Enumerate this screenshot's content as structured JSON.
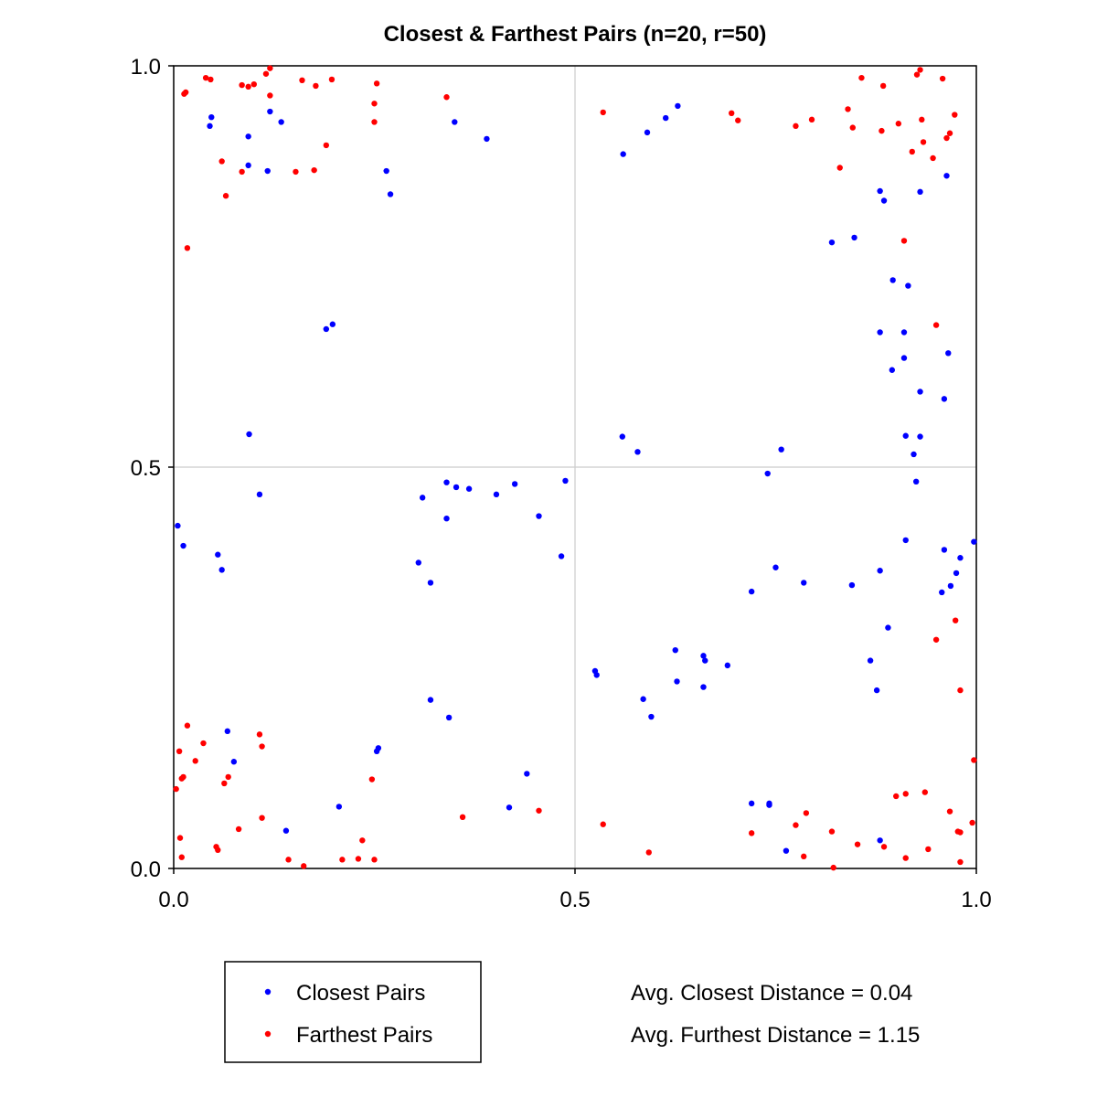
{
  "chart_data": {
    "type": "scatter",
    "title": "Closest & Farthest Pairs (n=20, r=50)",
    "xlabel": "",
    "ylabel": "",
    "xlim": [
      0.0,
      1.0
    ],
    "ylim": [
      0.0,
      1.0
    ],
    "xticks": [
      "0.0",
      "0.5",
      "1.0"
    ],
    "yticks": [
      "0.0",
      "0.5",
      "1.0"
    ],
    "grid": true,
    "legend_position": "bottom-left, outside plot",
    "series": [
      {
        "name": "Closest Pairs",
        "color": "#0000ff",
        "points": [
          [
            0.047,
            0.936
          ],
          [
            0.045,
            0.925
          ],
          [
            0.093,
            0.876
          ],
          [
            0.093,
            0.912
          ],
          [
            0.12,
            0.943
          ],
          [
            0.134,
            0.93
          ],
          [
            0.117,
            0.869
          ],
          [
            0.35,
            0.93
          ],
          [
            0.39,
            0.909
          ],
          [
            0.265,
            0.869
          ],
          [
            0.27,
            0.84
          ],
          [
            0.19,
            0.672
          ],
          [
            0.198,
            0.678
          ],
          [
            0.094,
            0.541
          ],
          [
            0.107,
            0.466
          ],
          [
            0.005,
            0.427
          ],
          [
            0.012,
            0.402
          ],
          [
            0.055,
            0.391
          ],
          [
            0.06,
            0.372
          ],
          [
            0.067,
            0.171
          ],
          [
            0.075,
            0.133
          ],
          [
            0.14,
            0.047
          ],
          [
            0.206,
            0.077
          ],
          [
            0.253,
            0.146
          ],
          [
            0.255,
            0.15
          ],
          [
            0.31,
            0.462
          ],
          [
            0.32,
            0.356
          ],
          [
            0.305,
            0.381
          ],
          [
            0.34,
            0.481
          ],
          [
            0.352,
            0.475
          ],
          [
            0.368,
            0.473
          ],
          [
            0.34,
            0.436
          ],
          [
            0.402,
            0.466
          ],
          [
            0.425,
            0.479
          ],
          [
            0.455,
            0.439
          ],
          [
            0.483,
            0.389
          ],
          [
            0.488,
            0.483
          ],
          [
            0.32,
            0.21
          ],
          [
            0.343,
            0.188
          ],
          [
            0.418,
            0.076
          ],
          [
            0.44,
            0.118
          ],
          [
            0.56,
            0.89
          ],
          [
            0.59,
            0.917
          ],
          [
            0.613,
            0.935
          ],
          [
            0.628,
            0.95
          ],
          [
            0.559,
            0.538
          ],
          [
            0.578,
            0.519
          ],
          [
            0.525,
            0.246
          ],
          [
            0.527,
            0.241
          ],
          [
            0.585,
            0.211
          ],
          [
            0.595,
            0.189
          ],
          [
            0.625,
            0.272
          ],
          [
            0.627,
            0.233
          ],
          [
            0.66,
            0.265
          ],
          [
            0.662,
            0.259
          ],
          [
            0.66,
            0.226
          ],
          [
            0.69,
            0.253
          ],
          [
            0.72,
            0.345
          ],
          [
            0.75,
            0.375
          ],
          [
            0.74,
            0.492
          ],
          [
            0.757,
            0.522
          ],
          [
            0.785,
            0.356
          ],
          [
            0.72,
            0.081
          ],
          [
            0.742,
            0.079
          ],
          [
            0.742,
            0.081
          ],
          [
            0.763,
            0.022
          ],
          [
            0.82,
            0.78
          ],
          [
            0.848,
            0.786
          ],
          [
            0.88,
            0.844
          ],
          [
            0.885,
            0.832
          ],
          [
            0.896,
            0.733
          ],
          [
            0.88,
            0.668
          ],
          [
            0.91,
            0.668
          ],
          [
            0.895,
            0.621
          ],
          [
            0.91,
            0.636
          ],
          [
            0.915,
            0.726
          ],
          [
            0.93,
            0.843
          ],
          [
            0.93,
            0.594
          ],
          [
            0.93,
            0.538
          ],
          [
            0.912,
            0.539
          ],
          [
            0.922,
            0.516
          ],
          [
            0.925,
            0.482
          ],
          [
            0.912,
            0.409
          ],
          [
            0.88,
            0.371
          ],
          [
            0.845,
            0.353
          ],
          [
            0.89,
            0.3
          ],
          [
            0.868,
            0.259
          ],
          [
            0.876,
            0.222
          ],
          [
            0.88,
            0.035
          ],
          [
            0.963,
            0.863
          ],
          [
            0.965,
            0.642
          ],
          [
            0.96,
            0.585
          ],
          [
            0.96,
            0.397
          ],
          [
            0.957,
            0.344
          ],
          [
            0.968,
            0.352
          ],
          [
            0.975,
            0.368
          ],
          [
            0.98,
            0.387
          ],
          [
            0.997,
            0.407
          ]
        ]
      },
      {
        "name": "Farthest Pairs",
        "color": "#ff0000",
        "points": [
          [
            0.013,
            0.965
          ],
          [
            0.015,
            0.967
          ],
          [
            0.04,
            0.985
          ],
          [
            0.046,
            0.983
          ],
          [
            0.085,
            0.976
          ],
          [
            0.093,
            0.974
          ],
          [
            0.1,
            0.977
          ],
          [
            0.115,
            0.99
          ],
          [
            0.12,
            0.997
          ],
          [
            0.12,
            0.963
          ],
          [
            0.16,
            0.982
          ],
          [
            0.177,
            0.975
          ],
          [
            0.197,
            0.983
          ],
          [
            0.25,
            0.953
          ],
          [
            0.25,
            0.93
          ],
          [
            0.253,
            0.978
          ],
          [
            0.34,
            0.961
          ],
          [
            0.085,
            0.868
          ],
          [
            0.06,
            0.881
          ],
          [
            0.065,
            0.838
          ],
          [
            0.152,
            0.868
          ],
          [
            0.175,
            0.87
          ],
          [
            0.19,
            0.901
          ],
          [
            0.017,
            0.773
          ],
          [
            0.003,
            0.099
          ],
          [
            0.01,
            0.112
          ],
          [
            0.012,
            0.114
          ],
          [
            0.007,
            0.146
          ],
          [
            0.008,
            0.038
          ],
          [
            0.01,
            0.014
          ],
          [
            0.017,
            0.178
          ],
          [
            0.027,
            0.134
          ],
          [
            0.037,
            0.156
          ],
          [
            0.053,
            0.027
          ],
          [
            0.055,
            0.023
          ],
          [
            0.063,
            0.106
          ],
          [
            0.068,
            0.114
          ],
          [
            0.081,
            0.049
          ],
          [
            0.107,
            0.167
          ],
          [
            0.11,
            0.152
          ],
          [
            0.11,
            0.063
          ],
          [
            0.143,
            0.011
          ],
          [
            0.162,
            0.003
          ],
          [
            0.21,
            0.011
          ],
          [
            0.23,
            0.012
          ],
          [
            0.235,
            0.035
          ],
          [
            0.25,
            0.011
          ],
          [
            0.247,
            0.111
          ],
          [
            0.36,
            0.064
          ],
          [
            0.455,
            0.072
          ],
          [
            0.535,
            0.942
          ],
          [
            0.535,
            0.055
          ],
          [
            0.592,
            0.02
          ],
          [
            0.695,
            0.941
          ],
          [
            0.703,
            0.932
          ],
          [
            0.72,
            0.044
          ],
          [
            0.775,
            0.925
          ],
          [
            0.795,
            0.933
          ],
          [
            0.83,
            0.873
          ],
          [
            0.84,
            0.946
          ],
          [
            0.846,
            0.923
          ],
          [
            0.857,
            0.985
          ],
          [
            0.882,
            0.919
          ],
          [
            0.884,
            0.975
          ],
          [
            0.903,
            0.928
          ],
          [
            0.91,
            0.782
          ],
          [
            0.92,
            0.893
          ],
          [
            0.926,
            0.989
          ],
          [
            0.93,
            0.995
          ],
          [
            0.932,
            0.933
          ],
          [
            0.934,
            0.905
          ],
          [
            0.946,
            0.885
          ],
          [
            0.95,
            0.677
          ],
          [
            0.958,
            0.984
          ],
          [
            0.963,
            0.91
          ],
          [
            0.967,
            0.916
          ],
          [
            0.973,
            0.939
          ],
          [
            0.974,
            0.309
          ],
          [
            0.95,
            0.285
          ],
          [
            0.98,
            0.222
          ],
          [
            0.997,
            0.135
          ],
          [
            0.775,
            0.054
          ],
          [
            0.788,
            0.069
          ],
          [
            0.785,
            0.015
          ],
          [
            0.82,
            0.046
          ],
          [
            0.822,
            0.001
          ],
          [
            0.852,
            0.03
          ],
          [
            0.885,
            0.027
          ],
          [
            0.9,
            0.09
          ],
          [
            0.912,
            0.093
          ],
          [
            0.912,
            0.013
          ],
          [
            0.936,
            0.095
          ],
          [
            0.94,
            0.024
          ],
          [
            0.967,
            0.071
          ],
          [
            0.977,
            0.046
          ],
          [
            0.98,
            0.045
          ],
          [
            0.98,
            0.008
          ],
          [
            0.995,
            0.057
          ]
        ]
      }
    ],
    "annotations": [
      "Avg. Closest Distance = 0.04",
      "Avg. Furthest Distance = 1.15"
    ]
  }
}
